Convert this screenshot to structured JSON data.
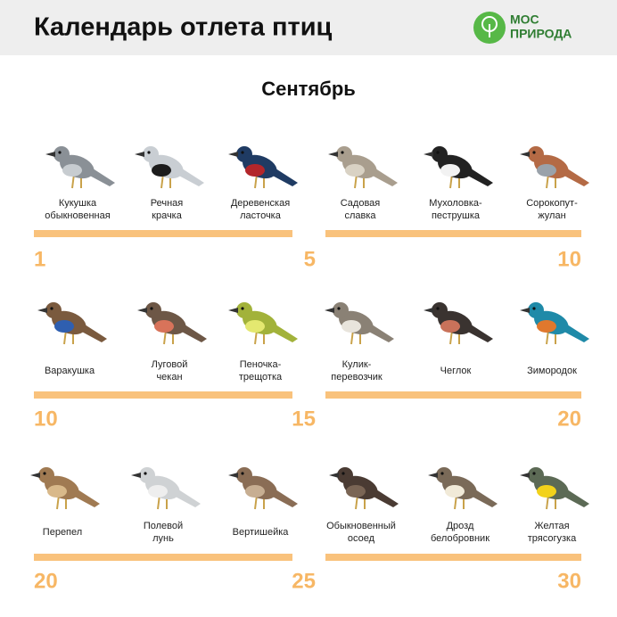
{
  "header": {
    "title": "Календарь отлета птиц",
    "logo": [
      "МОС",
      "ПРИРОДА"
    ]
  },
  "month": "Сентябрь",
  "rows": [
    {
      "segments": [
        {
          "start": 1,
          "end": 5,
          "birds": [
            {
              "name": [
                "Кукушка",
                "обыкновенная"
              ],
              "color": "#8a9096",
              "accent": "#c7ccd0"
            },
            {
              "name": [
                "Речная",
                "крачка"
              ],
              "color": "#c9ced3",
              "accent": "#1c1c1c"
            },
            {
              "name": [
                "Деревенская",
                "ласточка"
              ],
              "color": "#1f3b63",
              "accent": "#b3262a"
            }
          ]
        },
        {
          "end": 10,
          "birds": [
            {
              "name": [
                "Садовая",
                "славка"
              ],
              "color": "#a99e8e",
              "accent": "#d9d2c4"
            },
            {
              "name": [
                "Мухоловка-",
                "пеструшка"
              ],
              "color": "#222222",
              "accent": "#f2f2f2"
            },
            {
              "name": [
                "Сорокопут-",
                "жулан"
              ],
              "color": "#b46a45",
              "accent": "#9aa2aa"
            }
          ]
        }
      ]
    },
    {
      "segments": [
        {
          "start": 10,
          "end": 15,
          "birds": [
            {
              "name": [
                "Варакушка"
              ],
              "color": "#7a5a3e",
              "accent": "#2f5fb0"
            },
            {
              "name": [
                "Луговой",
                "чекан"
              ],
              "color": "#6d5746",
              "accent": "#d8735a"
            },
            {
              "name": [
                "Пеночка-",
                "трещотка"
              ],
              "color": "#a2b23a",
              "accent": "#e4e870"
            }
          ]
        },
        {
          "end": 20,
          "birds": [
            {
              "name": [
                "Кулик-",
                "перевозчик"
              ],
              "color": "#8a8175",
              "accent": "#e8e4dc"
            },
            {
              "name": [
                "Чеглок"
              ],
              "color": "#3a3330",
              "accent": "#c9725a"
            },
            {
              "name": [
                "Зимородок"
              ],
              "color": "#1f8aa8",
              "accent": "#e0782d"
            }
          ]
        }
      ]
    },
    {
      "segments": [
        {
          "start": 20,
          "end": 25,
          "birds": [
            {
              "name": [
                "Перепел"
              ],
              "color": "#a07a52",
              "accent": "#d9b98a"
            },
            {
              "name": [
                "Полевой",
                "лунь"
              ],
              "color": "#cfd2d4",
              "accent": "#eeeeee"
            },
            {
              "name": [
                "Вертишейка"
              ],
              "color": "#8a6d55",
              "accent": "#c7ae92"
            }
          ]
        },
        {
          "end": 30,
          "birds": [
            {
              "name": [
                "Обыкновенный",
                "осоед"
              ],
              "color": "#4a3b33",
              "accent": "#7a6555"
            },
            {
              "name": [
                "Дрозд",
                "белобровник"
              ],
              "color": "#7a6a58",
              "accent": "#f1ead8"
            },
            {
              "name": [
                "Желтая",
                "трясогузка"
              ],
              "color": "#5c6a55",
              "accent": "#f2d21b"
            }
          ]
        }
      ]
    }
  ]
}
